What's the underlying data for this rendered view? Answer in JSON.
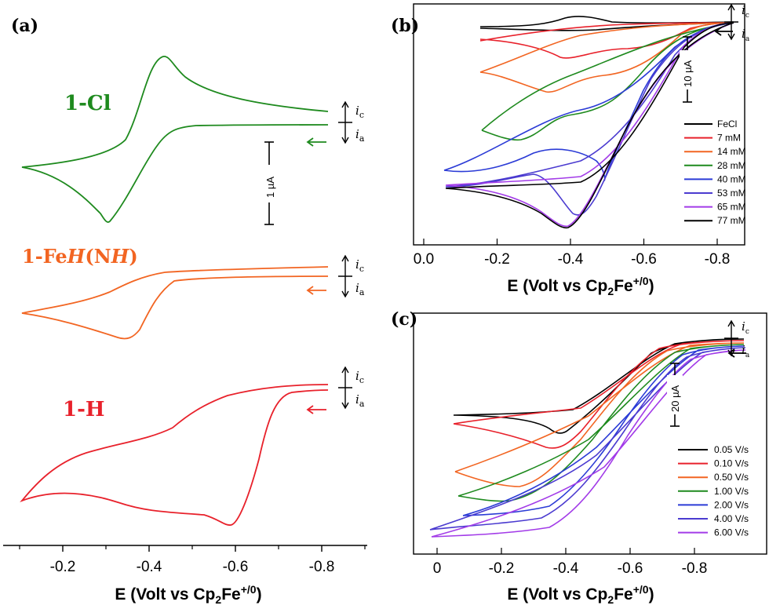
{
  "colors": {
    "black": "#000000",
    "red": "#e8212b",
    "orange": "#f26522",
    "green": "#1e8a1e",
    "blue": "#2b3bd6",
    "indigo": "#4b3bd0",
    "violet": "#a23be8"
  },
  "panels": {
    "a": {
      "label": "(a)"
    },
    "b": {
      "label": "(b)"
    },
    "c": {
      "label": "(c)"
    }
  },
  "chart_data": [
    {
      "panel": "(a)",
      "type": "line",
      "title": "",
      "xlabel": "E (Volt vs Cp2Fe+/0)",
      "xlim": [
        -0.1,
        -0.9
      ],
      "xticks": [
        "-0.2",
        "-0.4",
        "-0.6",
        "-0.8"
      ],
      "scale_bar": "1 µA",
      "current_labels": {
        "ic": "i",
        "ic_sub": "c",
        "ia": "i",
        "ia_sub": "a"
      },
      "series": [
        {
          "name": "1-Cl",
          "color": "#1e8a1e",
          "label_parts": [
            "1-Cl"
          ]
        },
        {
          "name": "1-FeH(NH)",
          "color": "#f26522",
          "label_parts": [
            "1-Fe",
            "H",
            "(N",
            "H",
            ")"
          ]
        },
        {
          "name": "1-H",
          "color": "#e8212b",
          "label_parts": [
            "1-H"
          ]
        }
      ]
    },
    {
      "panel": "(b)",
      "type": "line",
      "xlabel": "E (Volt vs Cp2Fe+/0)",
      "xlim": [
        0.05,
        -0.9
      ],
      "xticks": [
        "0.0",
        "-0.2",
        "-0.4",
        "-0.6",
        "-0.8"
      ],
      "scale_bar": "10 µA",
      "series": [
        {
          "name": "FeCl",
          "color": "#000000"
        },
        {
          "name": "7 mM",
          "color": "#e8212b"
        },
        {
          "name": "14 mM",
          "color": "#f26522"
        },
        {
          "name": "28 mM",
          "color": "#1e8a1e"
        },
        {
          "name": "40 mM",
          "color": "#2b3bd6"
        },
        {
          "name": "53 mM",
          "color": "#4b3bd0"
        },
        {
          "name": "65 mM",
          "color": "#a23be8"
        },
        {
          "name": "77 mM",
          "color": "#000000"
        }
      ]
    },
    {
      "panel": "(c)",
      "type": "line",
      "xlabel": "E (Volt vs Cp2Fe+/0)",
      "xlim": [
        0.05,
        -0.98
      ],
      "xticks": [
        "0",
        "-0.2",
        "-0.4",
        "-0.6",
        "-0.8"
      ],
      "scale_bar": "20 µA",
      "series": [
        {
          "name": "0.05 V/s",
          "color": "#000000"
        },
        {
          "name": "0.10 V/s",
          "color": "#e8212b"
        },
        {
          "name": "0.50 V/s",
          "color": "#f26522"
        },
        {
          "name": "1.00 V/s",
          "color": "#1e8a1e"
        },
        {
          "name": "2.00 V/s",
          "color": "#2b3bd6"
        },
        {
          "name": "4.00 V/s",
          "color": "#4b3bd0"
        },
        {
          "name": "6.00 V/s",
          "color": "#a23be8"
        }
      ]
    }
  ]
}
